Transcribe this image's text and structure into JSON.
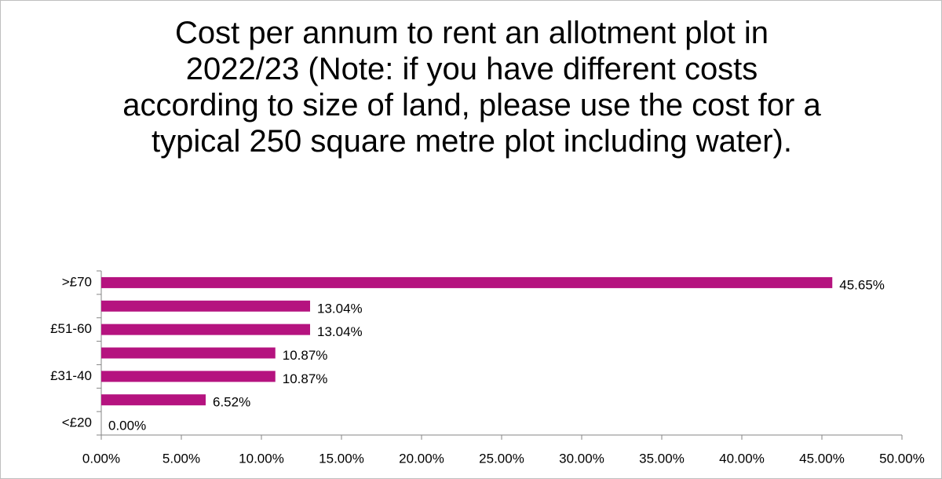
{
  "chart_data": {
    "type": "bar",
    "orientation": "horizontal",
    "title": "Cost per annum to rent an allotment plot in 2022/23 (Note: if you have different costs according to size of land, please use the cost for a typical 250 square metre plot including water).",
    "categories": [
      ">£70",
      null,
      "£51-60",
      null,
      "£31-40",
      null,
      "<£20"
    ],
    "values": [
      45.65,
      13.04,
      13.04,
      10.87,
      10.87,
      6.52,
      0.0
    ],
    "value_labels": [
      "45.65%",
      "13.04%",
      "13.04%",
      "10.87%",
      "10.87%",
      "6.52%",
      "0.00%"
    ],
    "color": "#b5137f",
    "xlim": [
      0,
      50
    ],
    "xticks": [
      {
        "value": 0,
        "label": "0.00%"
      },
      {
        "value": 5,
        "label": "5.00%"
      },
      {
        "value": 10,
        "label": "10.00%"
      },
      {
        "value": 15,
        "label": "15.00%"
      },
      {
        "value": 20,
        "label": "20.00%"
      },
      {
        "value": 25,
        "label": "25.00%"
      },
      {
        "value": 30,
        "label": "30.00%"
      },
      {
        "value": 35,
        "label": "35.00%"
      },
      {
        "value": 40,
        "label": "40.00%"
      },
      {
        "value": 45,
        "label": "45.00%"
      },
      {
        "value": 50,
        "label": "50.00%"
      }
    ],
    "grid": false
  }
}
